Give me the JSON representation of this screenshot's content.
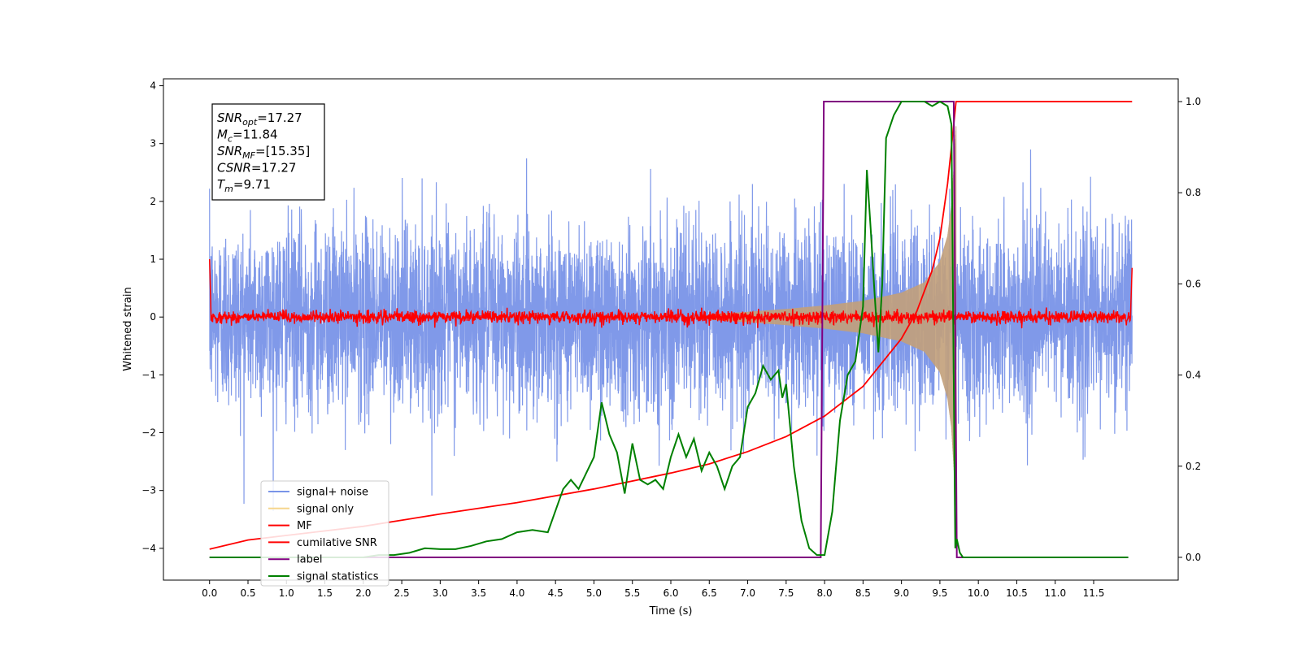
{
  "chart_data": {
    "type": "line",
    "xlabel": "Time (s)",
    "ylabel": "Whitened strain",
    "xlim": [
      -0.6,
      12.6
    ],
    "ylim": [
      -4.55,
      4.12
    ],
    "y2lim": [
      -0.05,
      1.05
    ],
    "x_ticks": [
      "0.0",
      "0.5",
      "1.0",
      "1.5",
      "2.0",
      "2.5",
      "3.0",
      "3.5",
      "4.0",
      "4.5",
      "5.0",
      "5.5",
      "6.0",
      "6.5",
      "7.0",
      "7.5",
      "8.0",
      "8.5",
      "9.0",
      "9.5",
      "10.0",
      "10.5",
      "11.0",
      "11.5"
    ],
    "y_ticks": [
      "−4",
      "−3",
      "−2",
      "−1",
      "0",
      "1",
      "2",
      "3",
      "4"
    ],
    "y2_ticks": [
      "0.0",
      "0.2",
      "0.4",
      "0.6",
      "0.8",
      "1.0"
    ],
    "annotation": {
      "lines": [
        {
          "base": "SNR",
          "sub": "opt",
          "value": "=17.27"
        },
        {
          "base": "M",
          "sub": "c",
          "value": "=11.84"
        },
        {
          "base": "SNR",
          "sub": "MF",
          "value": "=[15.35]"
        },
        {
          "base": "CSNR",
          "sub": "",
          "value": "=17.27"
        },
        {
          "base": "T",
          "sub": "m",
          "value": "=9.71"
        }
      ]
    },
    "legend_position": "lower-left",
    "noise": {
      "amplitude_std": 0.8,
      "t_start": 0.0,
      "t_end": 12.0
    },
    "signal_envelope": {
      "t": [
        6.5,
        7.0,
        7.5,
        8.0,
        8.5,
        9.0,
        9.3,
        9.5,
        9.6,
        9.65,
        9.7,
        9.71
      ],
      "amp": [
        0.05,
        0.09,
        0.14,
        0.2,
        0.28,
        0.42,
        0.6,
        0.95,
        1.4,
        1.9,
        3.0,
        3.3
      ]
    },
    "mf_noise": {
      "amplitude": 0.12
    },
    "series": [
      {
        "name": "signal+ noise",
        "color": "#7994e8",
        "style": "line"
      },
      {
        "name": "signal only",
        "color": "#f6d58d",
        "style": "line"
      },
      {
        "name": "MF",
        "color": "#ff0000",
        "style": "line"
      },
      {
        "name": "cumilative SNR",
        "color": "#ff0000",
        "style": "line",
        "axis": "right",
        "x": [
          0.0,
          0.5,
          1.0,
          2.0,
          3.0,
          4.0,
          5.0,
          6.0,
          6.5,
          7.0,
          7.5,
          8.0,
          8.5,
          9.0,
          9.2,
          9.4,
          9.5,
          9.6,
          9.65,
          9.71,
          12.0
        ],
        "y": [
          0.018,
          0.038,
          0.048,
          0.068,
          0.095,
          0.12,
          0.15,
          0.185,
          0.205,
          0.232,
          0.265,
          0.31,
          0.375,
          0.48,
          0.54,
          0.63,
          0.7,
          0.82,
          0.9,
          1.0,
          1.0
        ]
      },
      {
        "name": "label",
        "color": "#800080",
        "style": "line",
        "axis": "right",
        "x": [
          0.0,
          7.95,
          7.99,
          9.68,
          9.72,
          11.95
        ],
        "y": [
          0.0,
          0.0,
          1.0,
          1.0,
          0.0,
          0.0
        ]
      },
      {
        "name": "signal statistics",
        "color": "#008000",
        "style": "line",
        "axis": "right",
        "x": [
          0.0,
          0.5,
          1.0,
          1.5,
          2.0,
          2.2,
          2.4,
          2.6,
          2.8,
          3.0,
          3.2,
          3.4,
          3.6,
          3.8,
          4.0,
          4.2,
          4.4,
          4.6,
          4.7,
          4.8,
          5.0,
          5.1,
          5.2,
          5.3,
          5.4,
          5.5,
          5.6,
          5.7,
          5.8,
          5.9,
          6.0,
          6.1,
          6.2,
          6.3,
          6.4,
          6.5,
          6.6,
          6.7,
          6.8,
          6.9,
          7.0,
          7.1,
          7.2,
          7.3,
          7.4,
          7.45,
          7.5,
          7.6,
          7.7,
          7.8,
          7.9,
          8.0,
          8.1,
          8.2,
          8.3,
          8.4,
          8.5,
          8.55,
          8.6,
          8.65,
          8.7,
          8.75,
          8.8,
          8.9,
          9.0,
          9.1,
          9.2,
          9.3,
          9.4,
          9.5,
          9.6,
          9.65,
          9.7,
          9.72,
          9.76,
          9.8,
          10.0,
          10.5,
          11.0,
          11.5,
          11.95
        ],
        "y": [
          0.0,
          0.0,
          0.0,
          0.0,
          0.0,
          0.005,
          0.005,
          0.01,
          0.02,
          0.018,
          0.018,
          0.025,
          0.035,
          0.04,
          0.055,
          0.06,
          0.055,
          0.15,
          0.17,
          0.15,
          0.22,
          0.34,
          0.27,
          0.23,
          0.14,
          0.25,
          0.17,
          0.16,
          0.17,
          0.15,
          0.22,
          0.27,
          0.22,
          0.26,
          0.19,
          0.23,
          0.2,
          0.15,
          0.2,
          0.22,
          0.33,
          0.36,
          0.42,
          0.39,
          0.41,
          0.35,
          0.38,
          0.2,
          0.08,
          0.02,
          0.005,
          0.005,
          0.1,
          0.3,
          0.4,
          0.43,
          0.55,
          0.85,
          0.72,
          0.58,
          0.45,
          0.6,
          0.92,
          0.97,
          1.0,
          1.0,
          1.0,
          1.0,
          0.99,
          1.0,
          0.99,
          0.95,
          0.02,
          0.04,
          0.01,
          0.0,
          0.0,
          0.0,
          0.0,
          0.0,
          0.0
        ]
      }
    ]
  }
}
